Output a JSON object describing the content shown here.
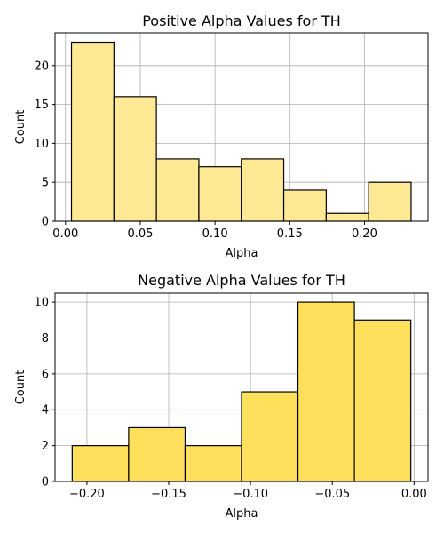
{
  "chart_data": [
    {
      "type": "bar",
      "title": "Positive Alpha Values for TH",
      "xlabel": "Alpha",
      "ylabel": "Count",
      "color": "#FFE995",
      "bin_edges": [
        0.004,
        0.0324,
        0.0608,
        0.0892,
        0.1176,
        0.146,
        0.1744,
        0.2028,
        0.2312
      ],
      "values": [
        23,
        16,
        8,
        7,
        8,
        4,
        1,
        5
      ],
      "xlim": [
        -0.007,
        0.2425
      ],
      "ylim": [
        0,
        24.2
      ],
      "xticks": [
        0.0,
        0.05,
        0.1,
        0.15,
        0.2
      ],
      "xtick_labels": [
        "0.00",
        "0.05",
        "0.10",
        "0.15",
        "0.20"
      ],
      "yticks": [
        0,
        5,
        10,
        15,
        20
      ],
      "ytick_labels": [
        "0",
        "5",
        "10",
        "15",
        "20"
      ],
      "grid": true
    },
    {
      "type": "bar",
      "title": "Negative Alpha Values for TH",
      "xlabel": "Alpha",
      "ylabel": "Count",
      "color": "#FFE05C",
      "bin_edges": [
        -0.209,
        -0.1745,
        -0.14,
        -0.1055,
        -0.071,
        -0.0365,
        -0.002
      ],
      "values": [
        2,
        3,
        2,
        5,
        10,
        9
      ],
      "xlim": [
        -0.2195,
        0.0085
      ],
      "ylim": [
        0,
        10.5
      ],
      "xticks": [
        -0.2,
        -0.15,
        -0.1,
        -0.05,
        0.0
      ],
      "xtick_labels": [
        "−0.20",
        "−0.15",
        "−0.10",
        "−0.05",
        "0.00"
      ],
      "yticks": [
        0,
        2,
        4,
        6,
        8,
        10
      ],
      "ytick_labels": [
        "0",
        "2",
        "4",
        "6",
        "8",
        "10"
      ],
      "grid": true
    }
  ]
}
